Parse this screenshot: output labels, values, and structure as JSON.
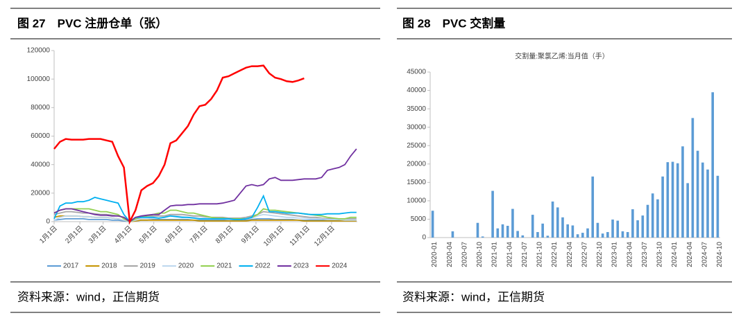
{
  "chart_data": [
    {
      "type": "line",
      "title": "图 27　PVC 注册仓单（张）",
      "source": "资料来源：wind，正信期货",
      "x": [
        0,
        7,
        14,
        21,
        28,
        35,
        42,
        49,
        56,
        63,
        70,
        77,
        84,
        91,
        98,
        105,
        112,
        119,
        126,
        133,
        140,
        147,
        154,
        161,
        168,
        175,
        182,
        189,
        196,
        203,
        210,
        217,
        224,
        231,
        238,
        245,
        252,
        259,
        266,
        273,
        280,
        287,
        294,
        301,
        308,
        315,
        322,
        329,
        336,
        343,
        350,
        357,
        364
      ],
      "xlim": [
        0,
        365
      ],
      "xticks": [
        {
          "value": 0,
          "label": "1月1日"
        },
        {
          "value": 31,
          "label": "2月1日"
        },
        {
          "value": 59,
          "label": "3月1日"
        },
        {
          "value": 90,
          "label": "4月1日"
        },
        {
          "value": 120,
          "label": "5月1日"
        },
        {
          "value": 151,
          "label": "6月1日"
        },
        {
          "value": 181,
          "label": "7月1日"
        },
        {
          "value": 212,
          "label": "8月1日"
        },
        {
          "value": 243,
          "label": "9月1日"
        },
        {
          "value": 273,
          "label": "10月1日"
        },
        {
          "value": 304,
          "label": "11月1日"
        },
        {
          "value": 334,
          "label": "12月1日"
        }
      ],
      "ylim": [
        0,
        120000
      ],
      "yticks": [
        0,
        20000,
        40000,
        60000,
        80000,
        100000,
        120000
      ],
      "series": [
        {
          "name": "2017",
          "color": "#5b9bd5",
          "values": [
            1000,
            1500,
            2000,
            2000,
            2000,
            2000,
            1500,
            1500,
            1500,
            1500,
            1000,
            1000,
            500,
            0,
            500,
            1000,
            1000,
            1500,
            1500,
            1500,
            1500,
            1500,
            1500,
            1500,
            1000,
            1000,
            1000,
            1000,
            1000,
            1000,
            1000,
            1000,
            1000,
            1000,
            1500,
            2000,
            2000,
            2000,
            1500,
            1500,
            1500,
            1500,
            1000,
            1000,
            1000,
            1000,
            1000,
            1000,
            1000,
            1000,
            1000,
            1000,
            1000
          ]
        },
        {
          "name": "2018",
          "color": "#c59400",
          "values": [
            3000,
            4000,
            4000,
            4000,
            4000,
            3500,
            3500,
            3000,
            3000,
            3000,
            2500,
            2000,
            1000,
            0,
            500,
            1000,
            1000,
            1000,
            1000,
            1000,
            1000,
            1000,
            1000,
            1000,
            1000,
            500,
            500,
            500,
            500,
            500,
            500,
            500,
            500,
            500,
            1000,
            1000,
            1000,
            1000,
            1000,
            1000,
            1000,
            1000,
            1000,
            500,
            500,
            500,
            500,
            500,
            500,
            500,
            500,
            500,
            500
          ]
        },
        {
          "name": "2019",
          "color": "#a5a5a5",
          "values": [
            5000,
            6000,
            7000,
            7000,
            6500,
            6000,
            6000,
            5500,
            5000,
            5000,
            4500,
            4000,
            3000,
            0,
            2000,
            3000,
            4000,
            4000,
            4000,
            4000,
            5000,
            5000,
            5000,
            4500,
            4000,
            4000,
            3500,
            3000,
            3000,
            3000,
            2500,
            2500,
            2500,
            3000,
            4000,
            5000,
            7000,
            6500,
            6000,
            5500,
            5000,
            4500,
            4000,
            3500,
            3000,
            3000,
            2500,
            2000,
            2000,
            2000,
            2000,
            2000,
            2000
          ]
        },
        {
          "name": "2020",
          "color": "#bdd7ee",
          "values": [
            1000,
            3000,
            4000,
            4000,
            4000,
            3500,
            3500,
            3000,
            3000,
            3000,
            2500,
            2000,
            1000,
            0,
            1000,
            2000,
            2000,
            2500,
            2500,
            3000,
            4000,
            4000,
            3500,
            3000,
            3000,
            2500,
            2500,
            2000,
            2000,
            2000,
            1500,
            1500,
            1500,
            2000,
            2500,
            4000,
            5000,
            4500,
            4000,
            3500,
            3000,
            3000,
            2500,
            2500,
            2000,
            2000,
            2000,
            1500,
            1500,
            1500,
            1000,
            1000,
            1000
          ]
        },
        {
          "name": "2021",
          "color": "#92d050",
          "values": [
            6000,
            8000,
            9000,
            9000,
            9000,
            9000,
            9000,
            8000,
            7000,
            7000,
            6000,
            5000,
            2000,
            0,
            2000,
            3000,
            4000,
            5000,
            6000,
            6000,
            8000,
            8000,
            7000,
            6000,
            6000,
            5000,
            4000,
            3000,
            2500,
            2500,
            2000,
            2000,
            2000,
            2000,
            3000,
            5000,
            9000,
            8000,
            8000,
            7500,
            7000,
            6500,
            6000,
            5500,
            5000,
            4500,
            4000,
            3000,
            2500,
            2000,
            2000,
            3000,
            3000
          ]
        },
        {
          "name": "2022",
          "color": "#00b0f0",
          "values": [
            2000,
            11000,
            13000,
            13000,
            14000,
            14000,
            15000,
            17000,
            16000,
            15000,
            14000,
            13000,
            5000,
            0,
            3000,
            3000,
            3000,
            3000,
            2500,
            3000,
            4000,
            3500,
            3000,
            3000,
            2500,
            2000,
            2000,
            2000,
            2000,
            2000,
            2000,
            1500,
            1500,
            2000,
            3000,
            10000,
            18000,
            7000,
            7000,
            6500,
            6000,
            6000,
            6000,
            5500,
            5000,
            5000,
            5000,
            5500,
            5500,
            5500,
            6000,
            6500,
            6500
          ]
        },
        {
          "name": "2023",
          "color": "#7030a0",
          "values": [
            6000,
            8000,
            9000,
            9000,
            8000,
            7000,
            6000,
            5000,
            4500,
            4500,
            4000,
            4000,
            3000,
            0,
            3000,
            4000,
            4500,
            5000,
            5000,
            8000,
            11000,
            11500,
            11500,
            12000,
            12000,
            12500,
            12500,
            12500,
            12500,
            13000,
            14000,
            15000,
            20000,
            25000,
            26000,
            25000,
            26000,
            30000,
            31000,
            29000,
            29000,
            29000,
            29500,
            30000,
            30000,
            30000,
            31000,
            36000,
            37000,
            38000,
            40000,
            46000,
            51000
          ]
        },
        {
          "name": "2024",
          "color": "#ff0000",
          "values": [
            51000,
            56000,
            58000,
            57500,
            57500,
            57500,
            58000,
            58000,
            58000,
            57000,
            56000,
            46000,
            38000,
            0,
            8000,
            22000,
            25000,
            27000,
            32000,
            40000,
            55000,
            57000,
            62000,
            67000,
            75000,
            81000,
            82000,
            86000,
            92000,
            101000,
            102000,
            104000,
            106000,
            108000,
            109000,
            109000,
            109500,
            104000,
            101000,
            100000,
            98500,
            98000,
            99000,
            100500,
            null,
            null,
            null,
            null,
            null,
            null,
            null,
            null,
            null
          ]
        }
      ]
    },
    {
      "type": "bar",
      "title": "图 28　PVC 交割量",
      "subtitle": "交割量:聚氯乙烯:当月值（手）",
      "source": "资料来源：wind，正信期货",
      "color": "#5b9bd5",
      "categories": [
        "2020-01",
        null,
        null,
        "2020-04",
        null,
        null,
        "2020-07",
        null,
        null,
        "2020-10",
        null,
        null,
        "2021-01",
        null,
        null,
        "2021-04",
        null,
        null,
        "2021-07",
        null,
        null,
        "2021-10",
        null,
        null,
        "2022-01",
        null,
        null,
        "2022-04",
        null,
        null,
        "2022-07",
        null,
        null,
        "2022-10",
        null,
        null,
        "2023-01",
        null,
        null,
        "2023-04",
        null,
        null,
        "2023-07",
        null,
        null,
        "2023-10",
        null,
        null,
        "2024-01",
        null,
        null,
        "2024-04",
        null,
        null,
        "2024-07",
        null,
        null,
        "2024-10"
      ],
      "values": [
        7300,
        0,
        0,
        0,
        1700,
        0,
        0,
        0,
        0,
        4000,
        300,
        0,
        12700,
        2500,
        3600,
        3200,
        7800,
        1800,
        600,
        0,
        6200,
        1500,
        3800,
        500,
        9800,
        8200,
        5500,
        3600,
        3300,
        900,
        1300,
        2500,
        16600,
        4000,
        1100,
        1500,
        4900,
        4600,
        1700,
        1500,
        7700,
        4700,
        6000,
        8900,
        12000,
        10400,
        16600,
        20500,
        20600,
        20200,
        24800,
        14800,
        32500,
        23600,
        20400,
        18500,
        39500,
        16800
      ],
      "ylim": [
        0,
        45000
      ],
      "yticks": [
        0,
        5000,
        10000,
        15000,
        20000,
        25000,
        30000,
        35000,
        40000,
        45000
      ]
    }
  ]
}
